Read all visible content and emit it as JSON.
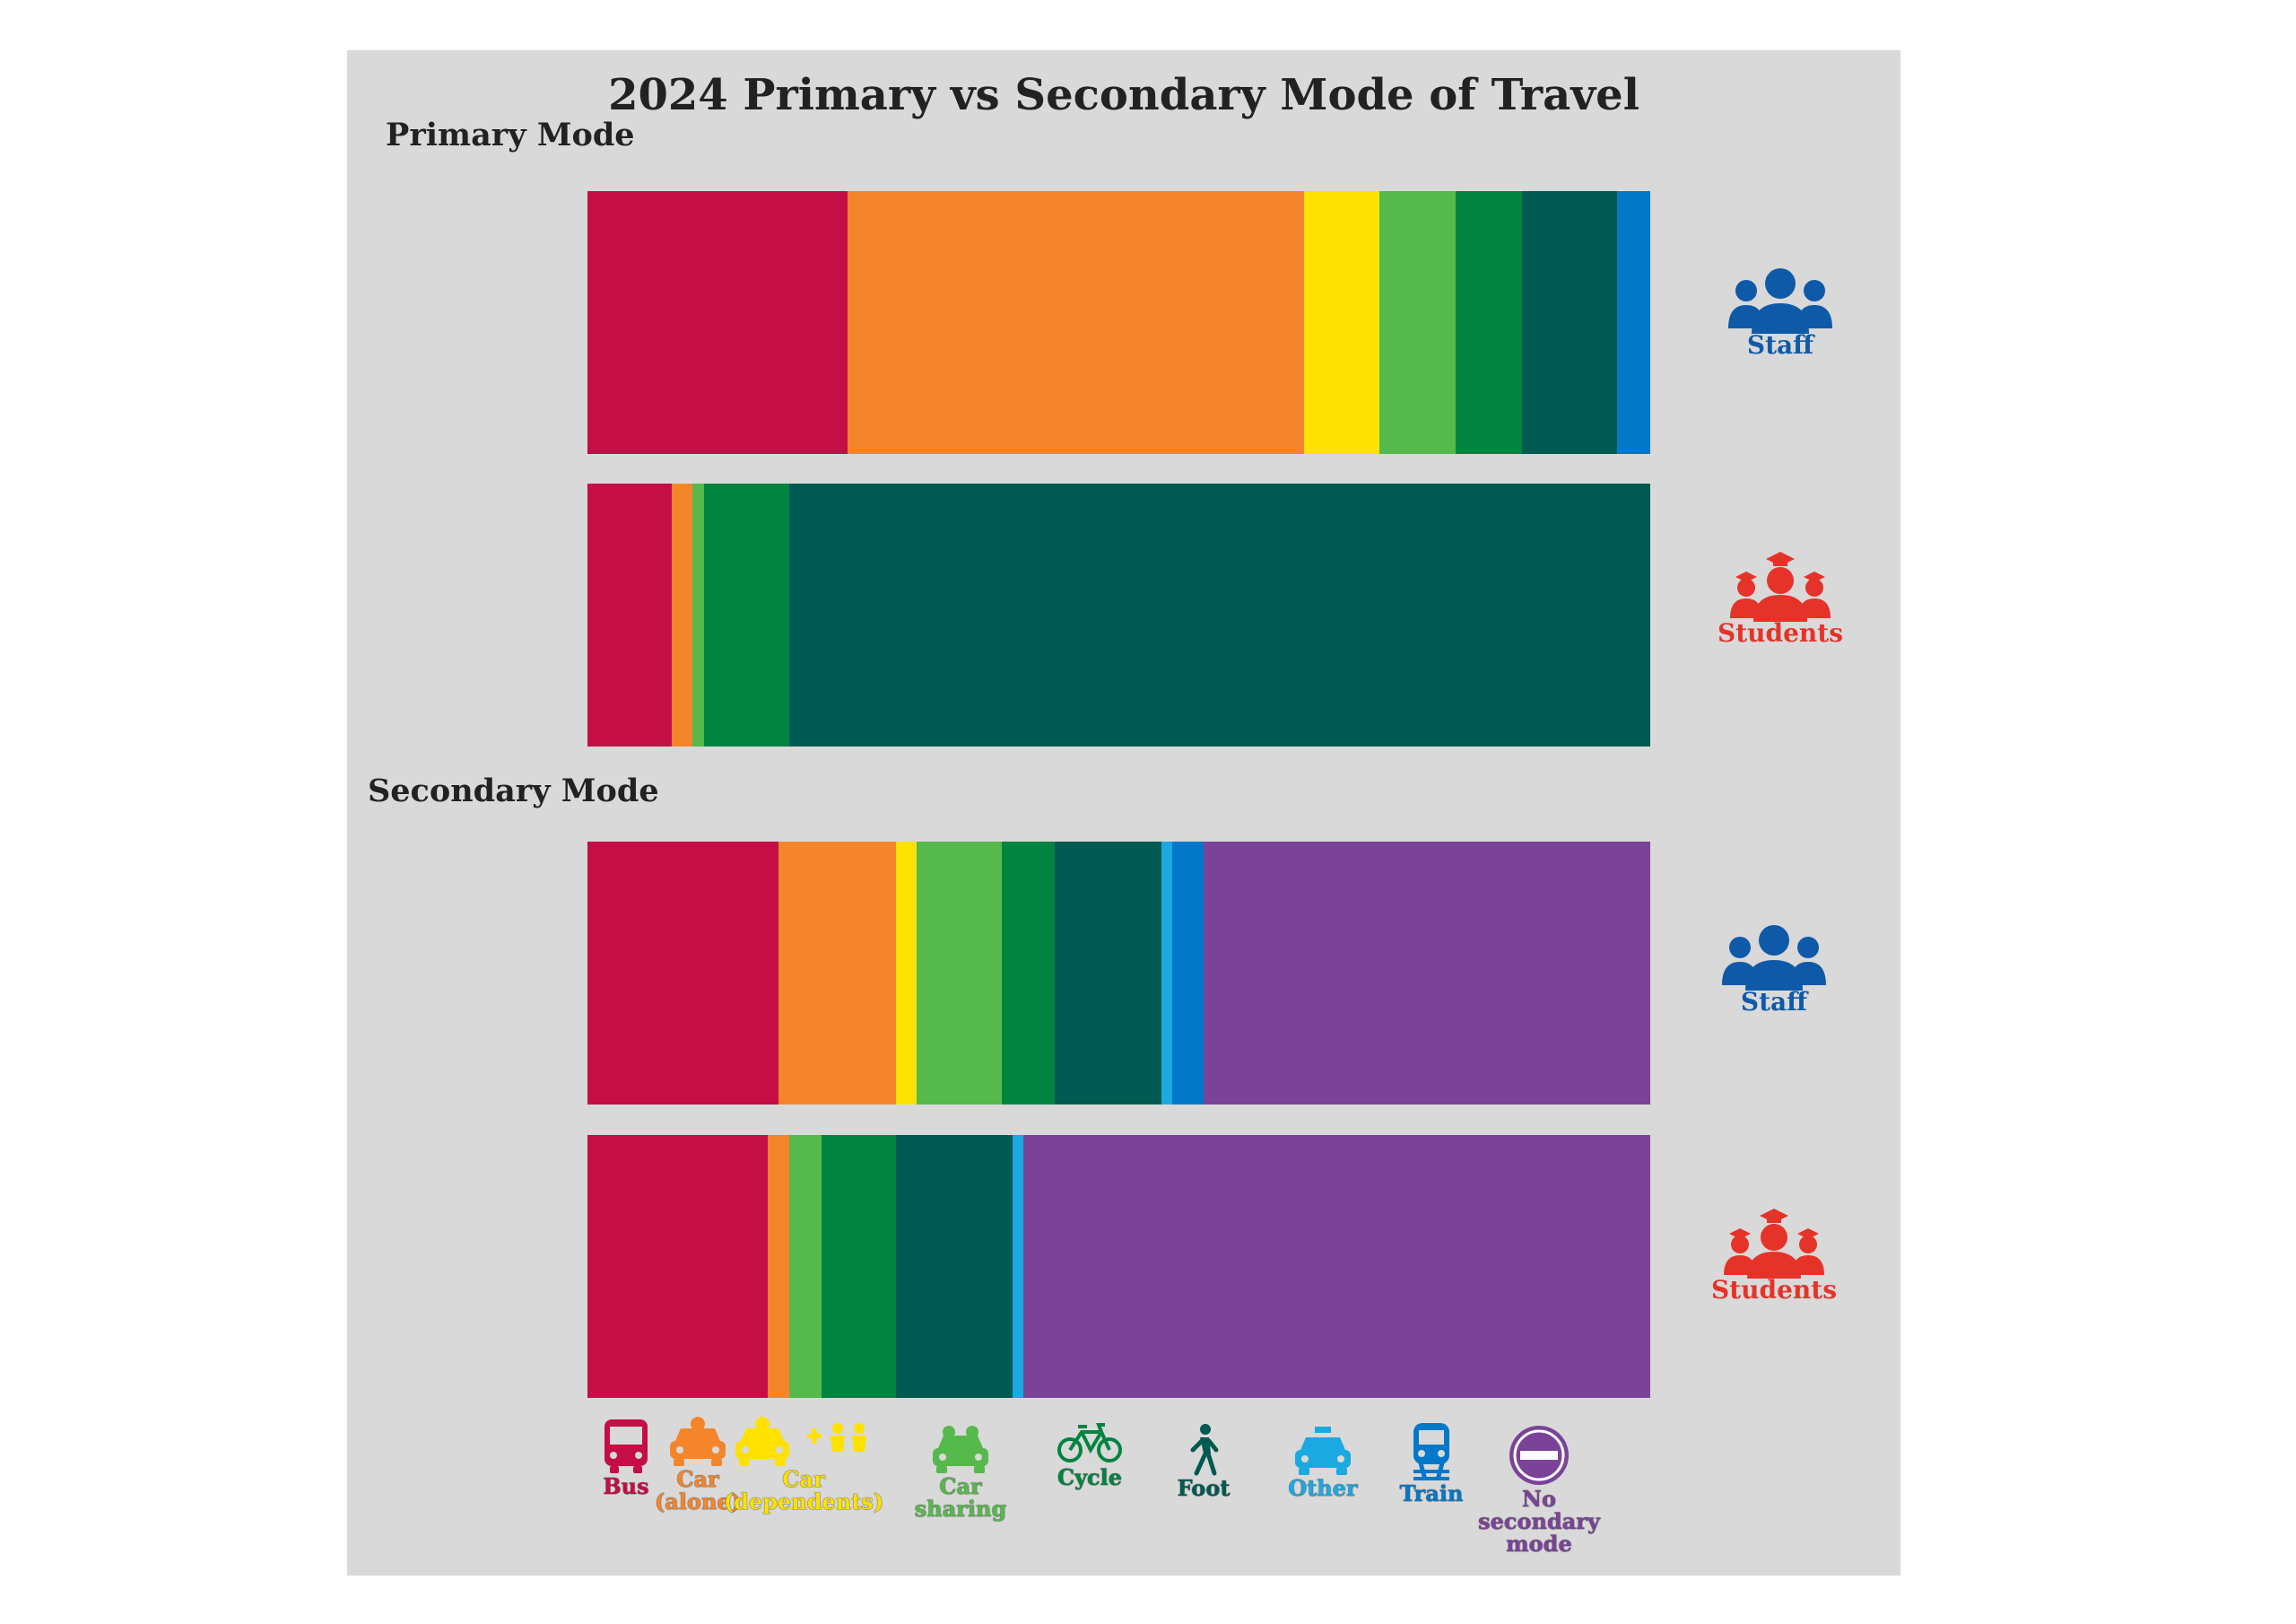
{
  "chart_data": {
    "type": "bar",
    "orientation": "horizontal",
    "stacked": true,
    "normalized": true,
    "title": "2024 Primary vs Secondary Mode of Travel",
    "sections": [
      {
        "label": "Primary Mode",
        "rows": [
          {
            "group": "Staff",
            "values": {
              "Bus": 24.5,
              "Car (alone)": 42.9,
              "Car (dependents)": 7.1,
              "Car sharing": 7.2,
              "Cycle": 6.2,
              "Foot": 9.0,
              "Other": 0.0,
              "Train": 3.1,
              "No secondary mode": 0.0
            }
          },
          {
            "group": "Students",
            "values": {
              "Bus": 7.9,
              "Car (alone)": 2.0,
              "Car (dependents)": 0.0,
              "Car sharing": 1.1,
              "Cycle": 8.0,
              "Foot": 81.0,
              "Other": 0.0,
              "Train": 0.0,
              "No secondary mode": 0.0
            }
          }
        ]
      },
      {
        "label": "Secondary Mode",
        "rows": [
          {
            "group": "Staff",
            "values": {
              "Bus": 18.0,
              "Car (alone)": 11.0,
              "Car (dependents)": 2.0,
              "Car sharing": 8.0,
              "Cycle": 5.0,
              "Foot": 10.0,
              "Other": 1.0,
              "Train": 3.0,
              "No secondary mode": 42.0
            }
          },
          {
            "group": "Students",
            "values": {
              "Bus": 17.0,
              "Car (alone)": 2.0,
              "Car (dependents)": 0.0,
              "Car sharing": 3.0,
              "Cycle": 7.0,
              "Foot": 11.0,
              "Other": 1.0,
              "Train": 0.0,
              "No secondary mode": 59.0
            }
          }
        ]
      }
    ],
    "legend": [
      {
        "key": "Bus",
        "label": "Bus",
        "color": "#c40e45",
        "icon": "bus-icon"
      },
      {
        "key": "Car (alone)",
        "label": "Car\n(alone)",
        "color": "#f5852b",
        "icon": "car-icon"
      },
      {
        "key": "Car (dependents)",
        "label": "Car\n(dependents)",
        "color": "#ffe100",
        "icon": "car-dependents-icon"
      },
      {
        "key": "Car sharing",
        "label": "Car\nsharing",
        "color": "#55b94b",
        "icon": "car-sharing-icon"
      },
      {
        "key": "Cycle",
        "label": "Cycle",
        "color": "#00843f",
        "icon": "bicycle-icon"
      },
      {
        "key": "Foot",
        "label": "Foot",
        "color": "#015a52",
        "icon": "walking-icon"
      },
      {
        "key": "Other",
        "label": "Other",
        "color": "#1ba9e1",
        "icon": "taxi-icon"
      },
      {
        "key": "Train",
        "label": "Train",
        "color": "#0478c8",
        "icon": "train-icon"
      },
      {
        "key": "No secondary mode",
        "label": "No secondary\nmode",
        "color": "#7b4398",
        "icon": "no-entry-icon"
      }
    ],
    "group_colors": {
      "Staff": "#0f5aa8",
      "Students": "#e5332a"
    },
    "legend_placement": "bottom",
    "grid": false
  }
}
